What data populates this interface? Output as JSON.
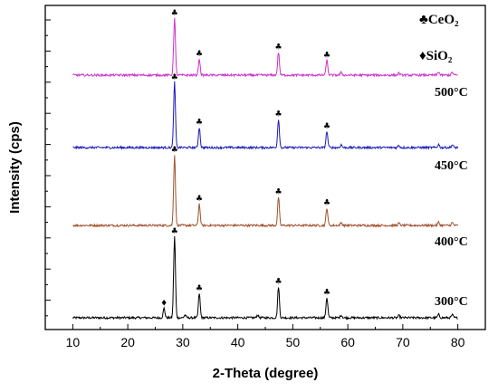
{
  "chart_data": {
    "type": "line",
    "xlabel": "2-Theta (degree)",
    "ylabel": "Intensity (cps)",
    "xlim": [
      5,
      85
    ],
    "xticks": [
      10,
      20,
      30,
      40,
      50,
      60,
      70,
      80
    ],
    "x_tick_labels": [
      "10",
      "20",
      "30",
      "40",
      "50",
      "60",
      "70",
      "80"
    ],
    "y_tick_labels_shown": false,
    "legend": {
      "placement": "top-right",
      "entries": [
        {
          "symbol": "♣",
          "label": "CeO₂"
        },
        {
          "symbol": "♦",
          "label": "SiO₂"
        }
      ]
    },
    "series": [
      {
        "name": "300°C",
        "color": "#000000",
        "baseline": 0,
        "peaks": [
          {
            "x": 26.6,
            "height": 3.5,
            "phase": "SiO2"
          },
          {
            "x": 28.5,
            "height": 30,
            "phase": "CeO2"
          },
          {
            "x": 30.4,
            "height": 1.0
          },
          {
            "x": 33.0,
            "height": 9,
            "phase": "CeO2"
          },
          {
            "x": 43.6,
            "height": 1.0
          },
          {
            "x": 47.4,
            "height": 11.5,
            "phase": "CeO2"
          },
          {
            "x": 56.2,
            "height": 7.5,
            "phase": "CeO2"
          },
          {
            "x": 58.8,
            "height": 1.0
          },
          {
            "x": 69.3,
            "height": 0.8
          },
          {
            "x": 76.5,
            "height": 1.2
          },
          {
            "x": 79.0,
            "height": 1.0
          }
        ]
      },
      {
        "name": "400°C",
        "color": "#a0522d",
        "baseline": 0,
        "peaks": [
          {
            "x": 28.5,
            "height": 26,
            "phase": "CeO2"
          },
          {
            "x": 33.0,
            "height": 8,
            "phase": "CeO2"
          },
          {
            "x": 47.4,
            "height": 10.5,
            "phase": "CeO2"
          },
          {
            "x": 56.2,
            "height": 6.5,
            "phase": "CeO2"
          },
          {
            "x": 58.8,
            "height": 1.0
          },
          {
            "x": 69.3,
            "height": 0.8
          },
          {
            "x": 76.5,
            "height": 1.2
          },
          {
            "x": 79.0,
            "height": 1.0
          }
        ]
      },
      {
        "name": "450°C",
        "color": "#1a1ab5",
        "baseline": 0,
        "peaks": [
          {
            "x": 28.5,
            "height": 24,
            "phase": "CeO2"
          },
          {
            "x": 33.0,
            "height": 7.5,
            "phase": "CeO2"
          },
          {
            "x": 47.4,
            "height": 10.5,
            "phase": "CeO2"
          },
          {
            "x": 56.2,
            "height": 6,
            "phase": "CeO2"
          },
          {
            "x": 58.8,
            "height": 1.0
          },
          {
            "x": 69.3,
            "height": 0.8
          },
          {
            "x": 76.5,
            "height": 1.2
          },
          {
            "x": 79.0,
            "height": 1.0
          }
        ]
      },
      {
        "name": "500°C",
        "color": "#cc33cc",
        "baseline": 0,
        "peaks": [
          {
            "x": 28.5,
            "height": 21,
            "phase": "CeO2"
          },
          {
            "x": 33.0,
            "height": 6,
            "phase": "CeO2"
          },
          {
            "x": 47.4,
            "height": 8.5,
            "phase": "CeO2"
          },
          {
            "x": 56.2,
            "height": 5.5,
            "phase": "CeO2"
          },
          {
            "x": 58.8,
            "height": 1.0
          },
          {
            "x": 69.3,
            "height": 0.8
          },
          {
            "x": 76.5,
            "height": 1.2
          },
          {
            "x": 79.0,
            "height": 1.0
          }
        ]
      }
    ]
  }
}
